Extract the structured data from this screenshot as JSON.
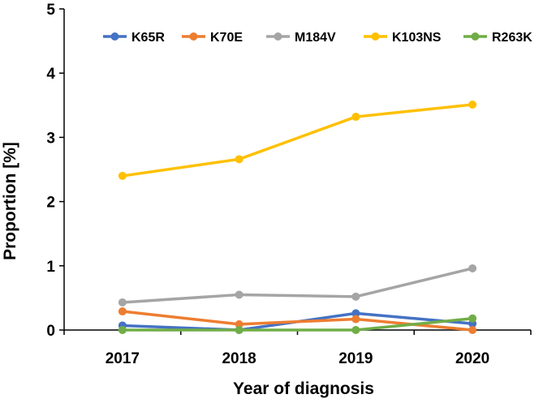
{
  "chart_data": {
    "type": "line",
    "title": "",
    "xlabel": "Year of diagnosis",
    "ylabel": "Proportion [%]",
    "categories": [
      "2017",
      "2018",
      "2019",
      "2020"
    ],
    "ylim": [
      0,
      5
    ],
    "yticks": [
      "0",
      "1",
      "2",
      "3",
      "4",
      "5"
    ],
    "grid": false,
    "legend_position": "top",
    "series": [
      {
        "name": "K65R",
        "color": "#4472C4",
        "values": [
          0.07,
          0.0,
          0.26,
          0.1
        ]
      },
      {
        "name": "K70E",
        "color": "#ED7D31",
        "values": [
          0.29,
          0.09,
          0.17,
          0.0
        ]
      },
      {
        "name": "M184V",
        "color": "#A5A5A5",
        "values": [
          0.43,
          0.55,
          0.52,
          0.96
        ]
      },
      {
        "name": "K103NS",
        "color": "#FFC000",
        "values": [
          2.4,
          2.66,
          3.32,
          3.51
        ]
      },
      {
        "name": "R263K",
        "color": "#70AD47",
        "values": [
          0.0,
          0.0,
          0.0,
          0.18
        ]
      }
    ]
  }
}
